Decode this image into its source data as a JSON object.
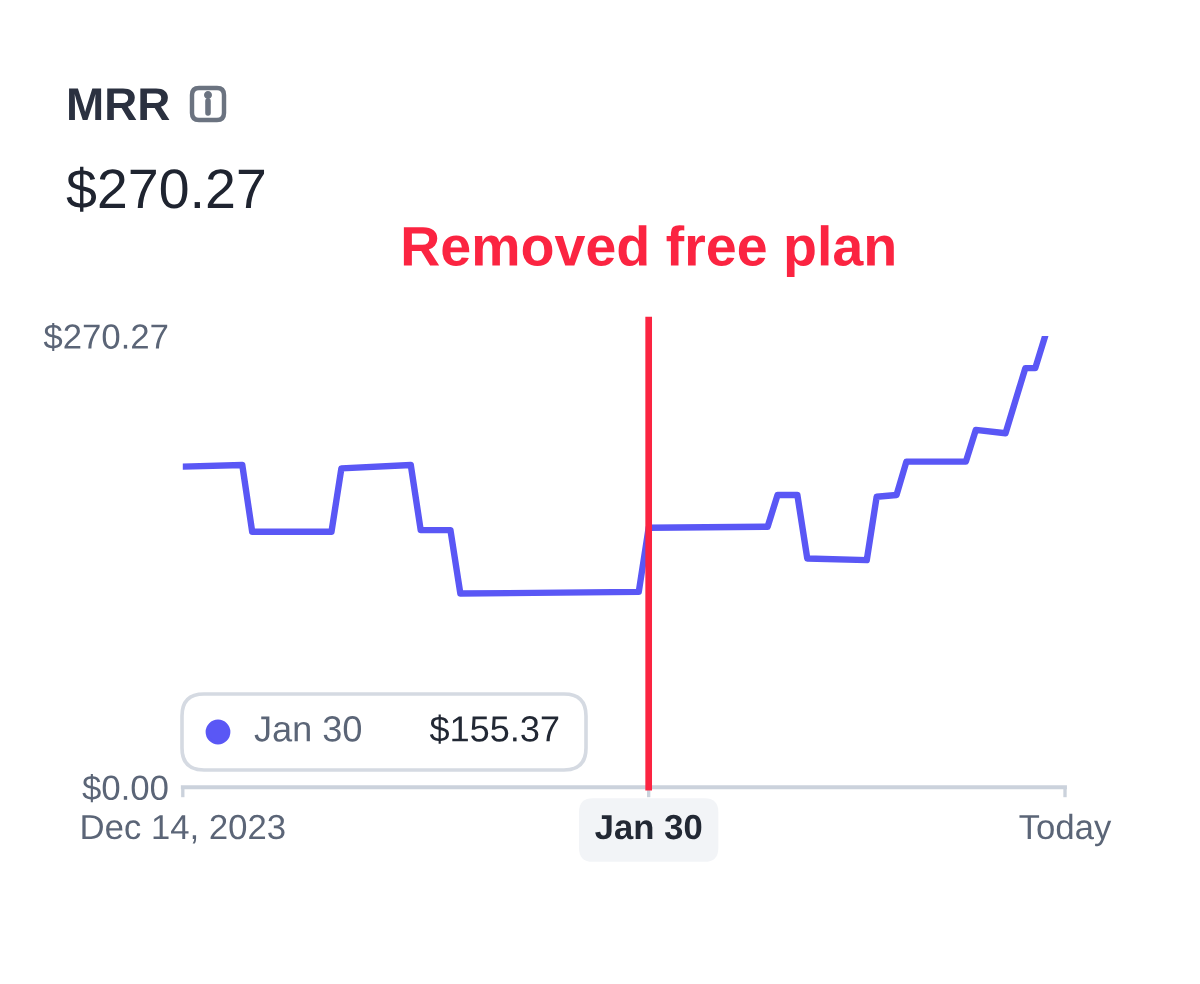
{
  "chart_data": {
    "type": "line",
    "title": "MRR",
    "subtitle": "$270.27",
    "x": [
      "2023-12-14",
      "2023-12-20",
      "2023-12-21",
      "2023-12-29",
      "2023-12-30",
      "2024-01-06",
      "2024-01-07",
      "2024-01-10",
      "2024-01-11",
      "2024-01-29",
      "2024-01-30",
      "2024-02-11",
      "2024-02-12",
      "2024-02-14",
      "2024-02-15",
      "2024-02-21",
      "2024-02-22",
      "2024-02-24",
      "2024-02-25",
      "2024-03-02",
      "2024-03-03",
      "2024-03-06",
      "2024-03-08",
      "2024-03-09",
      "2024-03-10"
    ],
    "series": [
      {
        "color": "#5a57f5",
        "values": [
          192,
          193,
          153,
          153,
          191,
          193,
          154,
          154,
          116,
          117,
          155.37,
          156,
          175,
          175,
          137,
          136,
          174,
          175,
          195,
          195,
          214,
          212,
          251,
          251,
          270.27
        ]
      }
    ],
    "xlim": [
      "2023-12-14",
      "2024-03-12"
    ],
    "xticks": [
      {
        "value": "2023-12-14",
        "label": "Dec 14, 2023"
      },
      {
        "value": "2024-01-30",
        "label": "Jan 30"
      },
      {
        "value": "2024-03-12",
        "label": "Today"
      }
    ],
    "ylim": [
      0,
      270.27
    ],
    "yticks": [
      {
        "value": 0,
        "label": "$0.00"
      },
      {
        "value": 270.27,
        "label": "$270.27"
      }
    ],
    "ref_lines": [
      {
        "axis": "x",
        "value": "2024-01-30",
        "label": "Removed free plan",
        "color": "#fb2441"
      }
    ],
    "annotations": [
      "Jan 30",
      "$155.37"
    ]
  }
}
